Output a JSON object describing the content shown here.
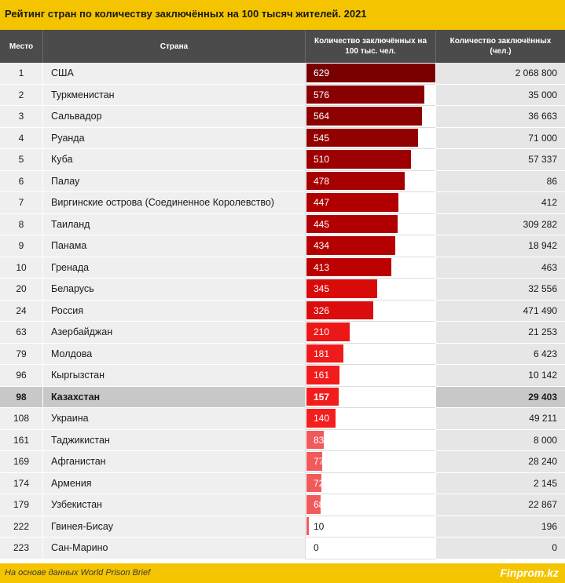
{
  "title": "Рейтинг стран по количеству заключённых на 100 тысяч жителей. 2021",
  "headers": {
    "rank": "Место",
    "country": "Страна",
    "rate": "Количество заключённых на 100 тыс. чел.",
    "total": "Количество заключённых (чел.)"
  },
  "footer": {
    "source": "На основе данных World Prison Brief",
    "brand": "Finprom.kz"
  },
  "colors": {
    "accent": "#f5c400",
    "header": "#4b4b4b",
    "bar_dark": "#7a0000",
    "bar_mid": "#e01010",
    "bar_light": "#f05a5a",
    "highlight_row": "#c8c8c8"
  },
  "highlighted_country": "Казахстан",
  "chart_data": {
    "type": "table",
    "title": "Рейтинг стран по количеству заключённых на 100 тысяч жителей. 2021",
    "columns": [
      "Место",
      "Страна",
      "Количество заключённых на 100 тыс. чел.",
      "Количество заключённых (чел.)"
    ],
    "rate_range": [
      0,
      629
    ],
    "rows": [
      {
        "rank": "1",
        "country": "США",
        "rate": 629,
        "total": "2 068 800"
      },
      {
        "rank": "2",
        "country": "Туркменистан",
        "rate": 576,
        "total": "35 000"
      },
      {
        "rank": "3",
        "country": "Сальвадор",
        "rate": 564,
        "total": "36 663"
      },
      {
        "rank": "4",
        "country": "Руанда",
        "rate": 545,
        "total": "71 000"
      },
      {
        "rank": "5",
        "country": "Куба",
        "rate": 510,
        "total": "57 337"
      },
      {
        "rank": "6",
        "country": "Палау",
        "rate": 478,
        "total": "86"
      },
      {
        "rank": "7",
        "country": "Виргинские острова (Соединенное Королевство)",
        "rate": 447,
        "total": "412"
      },
      {
        "rank": "8",
        "country": "Таиланд",
        "rate": 445,
        "total": "309 282"
      },
      {
        "rank": "9",
        "country": "Панама",
        "rate": 434,
        "total": "18 942"
      },
      {
        "rank": "10",
        "country": "Гренада",
        "rate": 413,
        "total": "463"
      },
      {
        "rank": "20",
        "country": "Беларусь",
        "rate": 345,
        "total": "32 556"
      },
      {
        "rank": "24",
        "country": "Россия",
        "rate": 326,
        "total": "471 490"
      },
      {
        "rank": "63",
        "country": "Азербайджан",
        "rate": 210,
        "total": "21 253"
      },
      {
        "rank": "79",
        "country": "Молдова",
        "rate": 181,
        "total": "6 423"
      },
      {
        "rank": "96",
        "country": "Кыргызстан",
        "rate": 161,
        "total": "10 142"
      },
      {
        "rank": "98",
        "country": "Казахстан",
        "rate": 157,
        "total": "29 403"
      },
      {
        "rank": "108",
        "country": "Украина",
        "rate": 140,
        "total": "49 211"
      },
      {
        "rank": "161",
        "country": "Таджикистан",
        "rate": 83,
        "total": "8 000"
      },
      {
        "rank": "169",
        "country": "Афганистан",
        "rate": 77,
        "total": "28 240"
      },
      {
        "rank": "174",
        "country": "Армения",
        "rate": 72,
        "total": "2 145"
      },
      {
        "rank": "179",
        "country": "Узбекистан",
        "rate": 68,
        "total": "22 867"
      },
      {
        "rank": "222",
        "country": "Гвинея-Бисау",
        "rate": 10,
        "total": "196"
      },
      {
        "rank": "223",
        "country": "Сан-Марино",
        "rate": 0,
        "total": "0"
      }
    ]
  }
}
